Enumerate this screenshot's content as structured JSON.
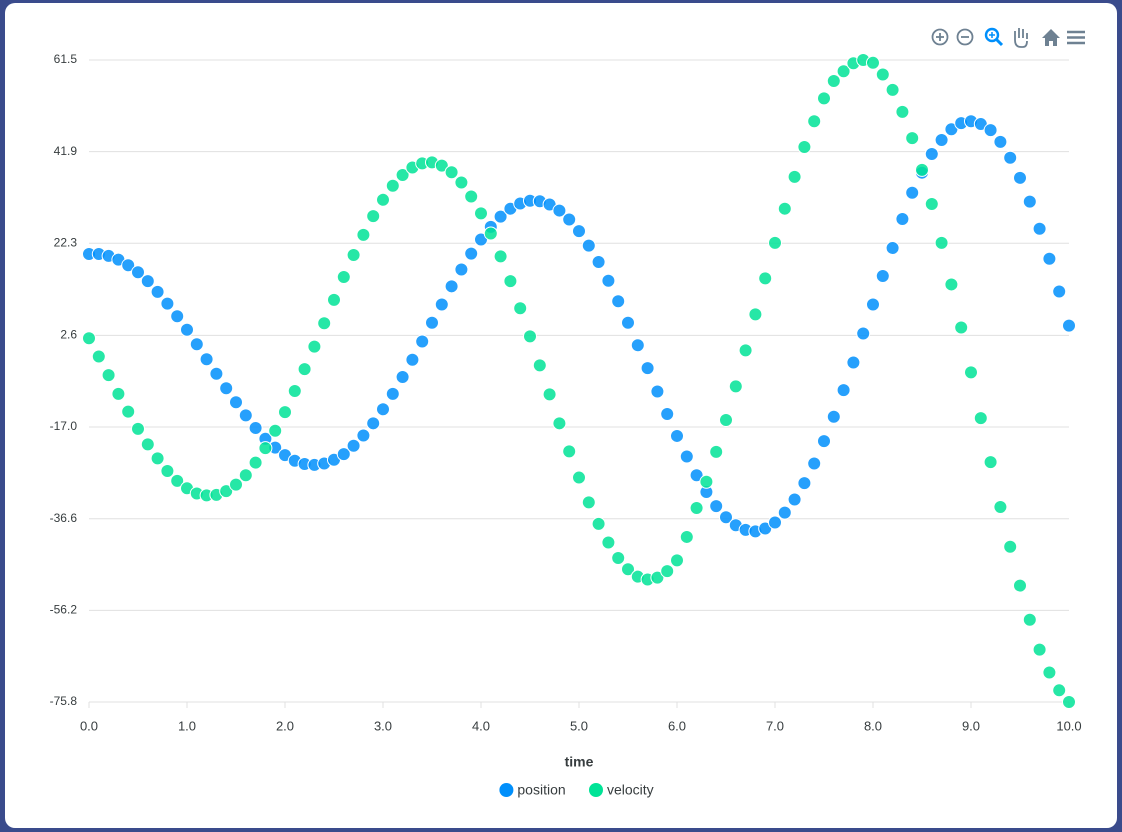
{
  "chart_data": {
    "type": "scatter",
    "x_label": "time",
    "x": [
      0,
      0.1,
      0.2,
      0.3,
      0.4,
      0.5,
      0.6,
      0.7,
      0.8,
      0.9,
      1.0,
      1.1,
      1.2,
      1.3,
      1.4,
      1.5,
      1.6,
      1.7,
      1.8,
      1.9,
      2.0,
      2.1,
      2.2,
      2.3,
      2.4,
      2.5,
      2.6,
      2.7,
      2.8,
      2.9,
      3.0,
      3.1,
      3.2,
      3.3,
      3.4,
      3.5,
      3.6,
      3.7,
      3.8,
      3.9,
      4.0,
      4.1,
      4.2,
      4.3,
      4.4,
      4.5,
      4.6,
      4.7,
      4.8,
      4.9,
      5.0,
      5.1,
      5.2,
      5.3,
      5.4,
      5.5,
      5.6,
      5.7,
      5.8,
      5.9,
      6.0,
      6.1,
      6.2,
      6.3,
      6.4,
      6.5,
      6.6,
      6.7,
      6.8,
      6.9,
      7.0,
      7.1,
      7.2,
      7.3,
      7.4,
      7.5,
      7.6,
      7.7,
      7.8,
      7.9,
      8.0,
      8.1,
      8.2,
      8.3,
      8.4,
      8.5,
      8.6,
      8.7,
      8.8,
      8.9,
      9.0,
      9.1,
      9.2,
      9.3,
      9.4,
      9.5,
      9.6,
      9.7,
      9.8,
      9.9,
      10.0
    ],
    "series": [
      {
        "name": "position",
        "color": "#008ffb",
        "values": [
          20.0,
          20.0,
          19.6,
          18.8,
          17.6,
          16.1,
          14.2,
          11.9,
          9.4,
          6.7,
          3.8,
          0.7,
          -2.5,
          -5.6,
          -8.7,
          -11.7,
          -14.5,
          -17.2,
          -19.5,
          -21.4,
          -23.0,
          -24.2,
          -24.9,
          -25.1,
          -24.8,
          -24.0,
          -22.8,
          -21.0,
          -18.8,
          -16.2,
          -13.2,
          -9.9,
          -6.3,
          -2.6,
          1.3,
          5.3,
          9.2,
          13.1,
          16.7,
          20.1,
          23.1,
          25.8,
          28.0,
          29.7,
          30.8,
          31.4,
          31.3,
          30.6,
          29.3,
          27.4,
          24.9,
          21.8,
          18.3,
          14.3,
          9.9,
          5.3,
          0.5,
          -4.4,
          -9.4,
          -14.2,
          -18.9,
          -23.3,
          -27.3,
          -30.9,
          -33.9,
          -36.3,
          -38.0,
          -39.0,
          -39.3,
          -38.7,
          -37.4,
          -35.3,
          -32.5,
          -29.0,
          -24.8,
          -20.0,
          -14.8,
          -9.1,
          -3.2,
          3.0,
          9.2,
          15.3,
          21.3,
          27.5,
          33.1,
          37.4,
          41.4,
          44.4,
          46.7,
          48.0,
          48.4,
          47.8,
          46.5,
          44.0,
          40.6,
          36.3,
          31.2,
          25.4,
          19.0,
          12.0,
          4.7
        ]
      },
      {
        "name": "velocity",
        "color": "#00e396",
        "values": [
          2.0,
          -1.9,
          -5.9,
          -9.9,
          -13.7,
          -17.4,
          -20.7,
          -23.7,
          -26.4,
          -28.5,
          -30.1,
          -31.2,
          -31.6,
          -31.5,
          -30.7,
          -29.3,
          -27.3,
          -24.6,
          -21.5,
          -17.8,
          -13.8,
          -9.3,
          -4.6,
          0.2,
          5.2,
          10.2,
          15.1,
          19.8,
          24.1,
          28.1,
          31.6,
          34.6,
          36.9,
          38.5,
          39.4,
          39.6,
          38.9,
          37.5,
          35.3,
          32.3,
          28.7,
          24.4,
          19.5,
          14.2,
          8.4,
          2.4,
          -3.8,
          -10.0,
          -16.2,
          -22.2,
          -27.8,
          -33.1,
          -37.7,
          -41.7,
          -45.0,
          -47.4,
          -49.0,
          -49.6,
          -49.2,
          -47.8,
          -45.5,
          -40.5,
          -34.3,
          -28.7,
          -22.3,
          -15.5,
          -8.3,
          -0.6,
          7.1,
          14.8,
          22.4,
          29.7,
          36.5,
          42.9,
          48.4,
          53.3,
          57.0,
          59.1,
          60.8,
          61.5,
          60.9,
          58.4,
          55.1,
          50.4,
          44.8,
          38.0,
          30.7,
          22.4,
          13.5,
          4.3,
          -5.3,
          -15.1,
          -24.5,
          -34.1,
          -42.6,
          -50.9,
          -58.2,
          -64.6,
          -69.5,
          -73.3,
          -75.8
        ]
      }
    ],
    "xlim": [
      0,
      10
    ],
    "xticks": [
      {
        "value": 0,
        "label": "0.0"
      },
      {
        "value": 1,
        "label": "1.0"
      },
      {
        "value": 2,
        "label": "2.0"
      },
      {
        "value": 3,
        "label": "3.0"
      },
      {
        "value": 4,
        "label": "4.0"
      },
      {
        "value": 5,
        "label": "5.0"
      },
      {
        "value": 6,
        "label": "6.0"
      },
      {
        "value": 7,
        "label": "7.0"
      },
      {
        "value": 8,
        "label": "8.0"
      },
      {
        "value": 9,
        "label": "9.0"
      },
      {
        "value": 10,
        "label": "10.0"
      }
    ],
    "ylim": [
      -75.8,
      61.5
    ],
    "yticks": [
      61.5,
      41.9,
      22.3,
      2.6,
      {
        "value": -17,
        "label": "-17.0"
      },
      -36.6,
      -56.2,
      -75.8
    ],
    "grid": true,
    "legend": "bottom"
  }
}
